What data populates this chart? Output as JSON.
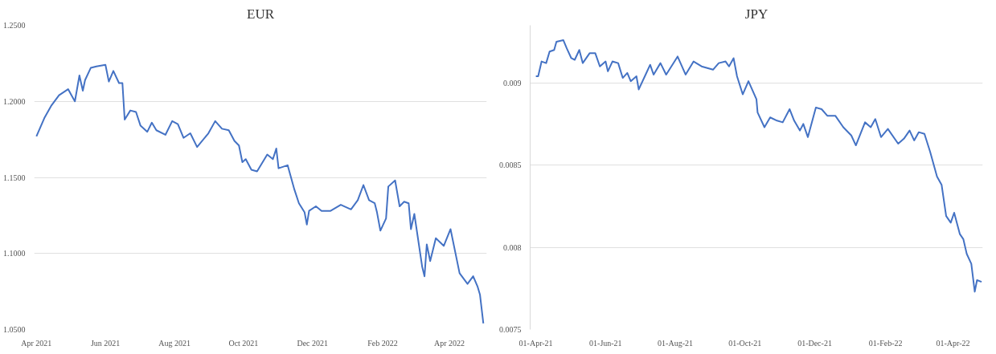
{
  "chart_data": [
    {
      "type": "line",
      "title": "EUR",
      "grid": "y",
      "xlim": [
        "2021-03-30",
        "2022-05-04"
      ],
      "ylim": [
        1.05,
        1.25
      ],
      "xticks": [
        {
          "value": "2021-04-01",
          "label": "Apr 2021"
        },
        {
          "value": "2021-06-01",
          "label": "Jun 2021"
        },
        {
          "value": "2021-08-01",
          "label": "Aug 2021"
        },
        {
          "value": "2021-10-01",
          "label": "Oct 2021"
        },
        {
          "value": "2021-12-01",
          "label": "Dec 2021"
        },
        {
          "value": "2022-02-01",
          "label": "Feb 2022"
        },
        {
          "value": "2022-04-01",
          "label": "Apr 2022"
        }
      ],
      "yticks": [
        {
          "value": 1.05,
          "label": "1.0500"
        },
        {
          "value": 1.1,
          "label": "1.1000"
        },
        {
          "value": 1.15,
          "label": "1.1500"
        },
        {
          "value": 1.2,
          "label": "1.2000"
        },
        {
          "value": 1.25,
          "label": "1.2500"
        }
      ],
      "series": [
        {
          "color": "#4472c4",
          "x": [
            "2021-04-01",
            "2021-04-08",
            "2021-04-14",
            "2021-04-21",
            "2021-04-29",
            "2021-05-02",
            "2021-05-05",
            "2021-05-09",
            "2021-05-12",
            "2021-05-14",
            "2021-05-19",
            "2021-05-24",
            "2021-06-01",
            "2021-06-04",
            "2021-06-08",
            "2021-06-13",
            "2021-06-16",
            "2021-06-18",
            "2021-06-23",
            "2021-06-28",
            "2021-07-02",
            "2021-07-08",
            "2021-07-12",
            "2021-07-16",
            "2021-07-24",
            "2021-07-30",
            "2021-08-04",
            "2021-08-09",
            "2021-08-15",
            "2021-08-21",
            "2021-08-31",
            "2021-09-06",
            "2021-09-12",
            "2021-09-18",
            "2021-09-23",
            "2021-09-27",
            "2021-09-30",
            "2021-10-03",
            "2021-10-08",
            "2021-10-13",
            "2021-10-22",
            "2021-10-27",
            "2021-10-30",
            "2021-11-01",
            "2021-11-09",
            "2021-11-15",
            "2021-11-19",
            "2021-11-24",
            "2021-11-26",
            "2021-11-28",
            "2021-12-04",
            "2021-12-09",
            "2021-12-17",
            "2021-12-26",
            "2022-01-04",
            "2022-01-10",
            "2022-01-15",
            "2022-01-20",
            "2022-01-25",
            "2022-01-27",
            "2022-01-30",
            "2022-02-04",
            "2022-02-06",
            "2022-02-12",
            "2022-02-16",
            "2022-02-20",
            "2022-02-24",
            "2022-02-26",
            "2022-03-01",
            "2022-03-08",
            "2022-03-10",
            "2022-03-12",
            "2022-03-15",
            "2022-03-20",
            "2022-03-27",
            "2022-04-02",
            "2022-04-10",
            "2022-04-17",
            "2022-04-22",
            "2022-04-26",
            "2022-04-28",
            "2022-05-01"
          ],
          "values": [
            1.177,
            1.189,
            1.197,
            1.204,
            1.208,
            1.204,
            1.2,
            1.217,
            1.207,
            1.214,
            1.222,
            1.223,
            1.224,
            1.213,
            1.22,
            1.212,
            1.212,
            1.188,
            1.194,
            1.193,
            1.184,
            1.18,
            1.186,
            1.181,
            1.178,
            1.187,
            1.185,
            1.176,
            1.179,
            1.17,
            1.179,
            1.187,
            1.182,
            1.181,
            1.174,
            1.171,
            1.16,
            1.162,
            1.155,
            1.154,
            1.165,
            1.162,
            1.169,
            1.156,
            1.158,
            1.142,
            1.133,
            1.127,
            1.119,
            1.128,
            1.131,
            1.128,
            1.128,
            1.132,
            1.129,
            1.135,
            1.145,
            1.135,
            1.133,
            1.127,
            1.115,
            1.123,
            1.144,
            1.148,
            1.131,
            1.134,
            1.133,
            1.116,
            1.126,
            1.091,
            1.085,
            1.106,
            1.095,
            1.11,
            1.105,
            1.116,
            1.087,
            1.08,
            1.085,
            1.078,
            1.073,
            1.054
          ]
        }
      ]
    },
    {
      "type": "line",
      "title": "JPY",
      "grid": "y",
      "xlim": [
        "2021-03-27",
        "2022-04-27"
      ],
      "ylim": [
        0.0075,
        0.00935
      ],
      "xticks": [
        {
          "value": "2021-04-01",
          "label": "01-Apr-21"
        },
        {
          "value": "2021-06-01",
          "label": "01-Jun-21"
        },
        {
          "value": "2021-08-01",
          "label": "01-Aug-21"
        },
        {
          "value": "2021-10-01",
          "label": "01-Oct-21"
        },
        {
          "value": "2021-12-01",
          "label": "01-Dec-21"
        },
        {
          "value": "2022-02-01",
          "label": "01-Feb-22"
        },
        {
          "value": "2022-04-01",
          "label": "01-Apr-22"
        }
      ],
      "yticks": [
        0.0075,
        0.008,
        0.0085,
        0.009
      ],
      "series": [
        {
          "color": "#4472c4",
          "x": [
            "2021-04-01",
            "2021-04-03",
            "2021-04-06",
            "2021-04-10",
            "2021-04-13",
            "2021-04-17",
            "2021-04-19",
            "2021-04-25",
            "2021-04-28",
            "2021-05-02",
            "2021-05-05",
            "2021-05-09",
            "2021-05-12",
            "2021-05-18",
            "2021-05-23",
            "2021-05-27",
            "2021-06-01",
            "2021-06-03",
            "2021-06-07",
            "2021-06-12",
            "2021-06-16",
            "2021-06-20",
            "2021-06-23",
            "2021-06-28",
            "2021-06-30",
            "2021-07-06",
            "2021-07-10",
            "2021-07-13",
            "2021-07-19",
            "2021-07-24",
            "2021-08-03",
            "2021-08-10",
            "2021-08-17",
            "2021-08-24",
            "2021-09-03",
            "2021-09-08",
            "2021-09-14",
            "2021-09-17",
            "2021-09-21",
            "2021-09-24",
            "2021-09-29",
            "2021-10-04",
            "2021-10-11",
            "2021-10-12",
            "2021-10-18",
            "2021-10-23",
            "2021-10-29",
            "2021-11-03",
            "2021-11-09",
            "2021-11-13",
            "2021-11-18",
            "2021-11-21",
            "2021-11-25",
            "2021-12-02",
            "2021-12-07",
            "2021-12-12",
            "2021-12-19",
            "2021-12-26",
            "2022-01-02",
            "2022-01-06",
            "2022-01-14",
            "2022-01-19",
            "2022-01-23",
            "2022-01-28",
            "2022-02-03",
            "2022-02-12",
            "2022-02-17",
            "2022-02-22",
            "2022-02-26",
            "2022-03-02",
            "2022-03-07",
            "2022-03-12",
            "2022-03-18",
            "2022-03-22",
            "2022-03-26",
            "2022-03-30",
            "2022-04-02",
            "2022-04-07",
            "2022-04-10",
            "2022-04-13",
            "2022-04-17",
            "2022-04-20",
            "2022-04-22",
            "2022-04-26"
          ],
          "values": [
            0.00904,
            0.00904,
            0.00913,
            0.00912,
            0.00919,
            0.0092,
            0.00925,
            0.00926,
            0.00921,
            0.00915,
            0.00914,
            0.0092,
            0.00912,
            0.00918,
            0.00918,
            0.0091,
            0.00913,
            0.00907,
            0.00913,
            0.00912,
            0.00903,
            0.00906,
            0.00901,
            0.00904,
            0.00896,
            0.00905,
            0.00911,
            0.00905,
            0.00912,
            0.00905,
            0.00916,
            0.00905,
            0.00913,
            0.0091,
            0.00908,
            0.00912,
            0.00913,
            0.0091,
            0.00915,
            0.00904,
            0.00893,
            0.00901,
            0.0089,
            0.00882,
            0.00873,
            0.00879,
            0.00877,
            0.00876,
            0.00884,
            0.00877,
            0.00871,
            0.00875,
            0.00867,
            0.00885,
            0.00884,
            0.0088,
            0.0088,
            0.00873,
            0.00868,
            0.00862,
            0.00876,
            0.00873,
            0.00878,
            0.00867,
            0.00872,
            0.00863,
            0.00866,
            0.00871,
            0.00865,
            0.0087,
            0.00869,
            0.00858,
            0.00843,
            0.00838,
            0.00819,
            0.00815,
            0.00821,
            0.00808,
            0.00805,
            0.00796,
            0.0079,
            0.00773,
            0.0078,
            0.00779
          ]
        }
      ]
    }
  ]
}
